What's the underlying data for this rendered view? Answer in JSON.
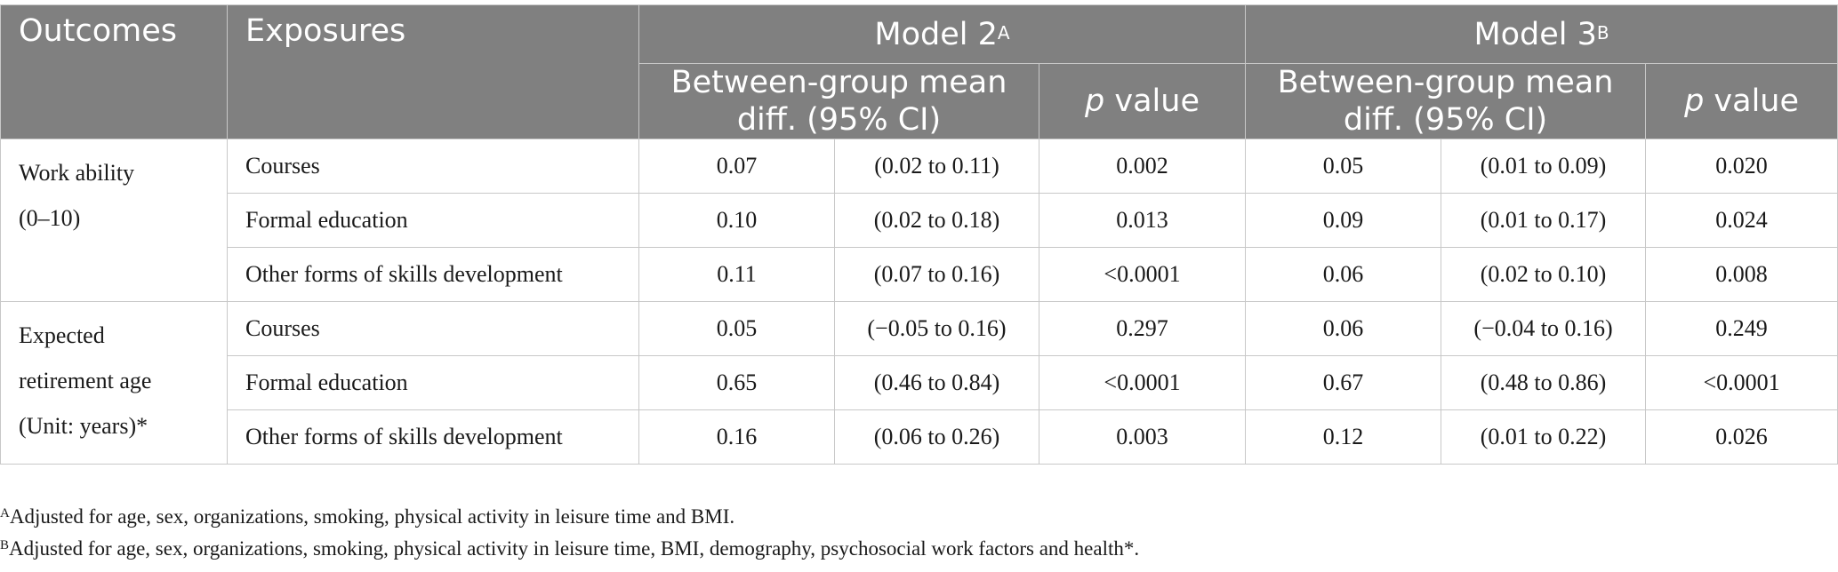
{
  "header": {
    "outcomes": "Outcomes",
    "exposures": "Exposures",
    "model2": "Model 2",
    "model2_sup": "A",
    "model3": "Model 3",
    "model3_sup": "B",
    "mean_diff": "Between-group mean diff. (95% CI)",
    "p_italic": "p",
    "p_rest": " value"
  },
  "groups": [
    {
      "outcome_lines": [
        "Work ability",
        "(0–10)"
      ],
      "rows": [
        {
          "exposure": "Courses",
          "m2_diff": "0.07",
          "m2_ci": "(0.02 to 0.11)",
          "m2_p": "0.002",
          "m3_diff": "0.05",
          "m3_ci": "(0.01 to 0.09)",
          "m3_p": "0.020"
        },
        {
          "exposure": "Formal education",
          "m2_diff": "0.10",
          "m2_ci": "(0.02 to 0.18)",
          "m2_p": "0.013",
          "m3_diff": "0.09",
          "m3_ci": "(0.01 to 0.17)",
          "m3_p": "0.024"
        },
        {
          "exposure": "Other forms of skills development",
          "m2_diff": "0.11",
          "m2_ci": "(0.07 to 0.16)",
          "m2_p": "<0.0001",
          "m3_diff": "0.06",
          "m3_ci": "(0.02 to 0.10)",
          "m3_p": "0.008"
        }
      ]
    },
    {
      "outcome_lines": [
        "Expected",
        "retirement age",
        "(Unit: years)*"
      ],
      "rows": [
        {
          "exposure": "Courses",
          "m2_diff": "0.05",
          "m2_ci": "(−0.05 to 0.16)",
          "m2_p": "0.297",
          "m3_diff": "0.06",
          "m3_ci": "(−0.04 to 0.16)",
          "m3_p": "0.249"
        },
        {
          "exposure": "Formal education",
          "m2_diff": "0.65",
          "m2_ci": "(0.46 to 0.84)",
          "m2_p": "<0.0001",
          "m3_diff": "0.67",
          "m3_ci": "(0.48 to 0.86)",
          "m3_p": "<0.0001"
        },
        {
          "exposure": "Other forms of skills development",
          "m2_diff": "0.16",
          "m2_ci": "(0.06 to 0.26)",
          "m2_p": "0.003",
          "m3_diff": "0.12",
          "m3_ci": "(0.01 to 0.22)",
          "m3_p": "0.026"
        }
      ]
    }
  ],
  "footnotes": [
    {
      "mark": "A",
      "text": "Adjusted for age, sex, organizations, smoking, physical activity in leisure time and BMI."
    },
    {
      "mark": "B",
      "text": "Adjusted for age, sex, organizations, smoking, physical activity in leisure time, BMI, demography, psychosocial work factors and health*."
    }
  ],
  "colors": {
    "header_bg": "#808080",
    "header_text": "#ffffff",
    "rule": "#c8c8c8"
  }
}
